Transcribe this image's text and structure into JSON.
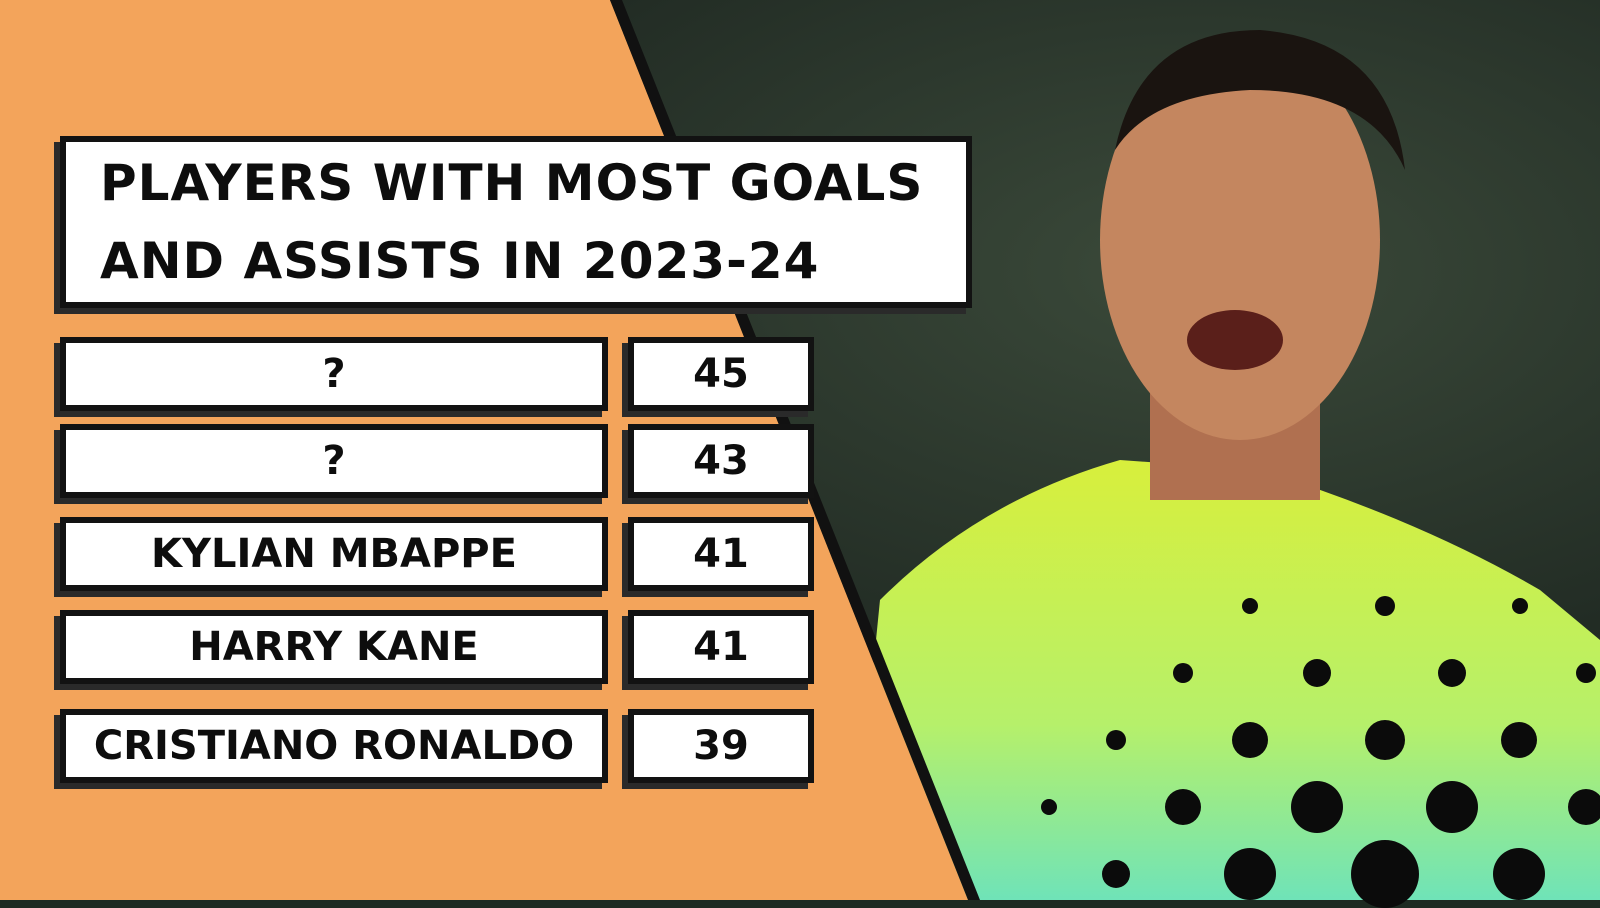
{
  "title": "PLAYERS WITH MOST GOALS AND ASSISTS IN 2023-24",
  "rows": [
    {
      "player": "?",
      "total": "45"
    },
    {
      "player": "?",
      "total": "43"
    },
    {
      "player": "KYLIAN MBAPPE",
      "total": "41"
    },
    {
      "player": "HARRY KANE",
      "total": "41"
    },
    {
      "player": "CRISTIANO RONALDO",
      "total": "39"
    }
  ],
  "colors": {
    "background_orange": "#F3A45B",
    "box_fill": "#FFFFFF",
    "border": "#121212",
    "shirt": "#D9F04A"
  }
}
